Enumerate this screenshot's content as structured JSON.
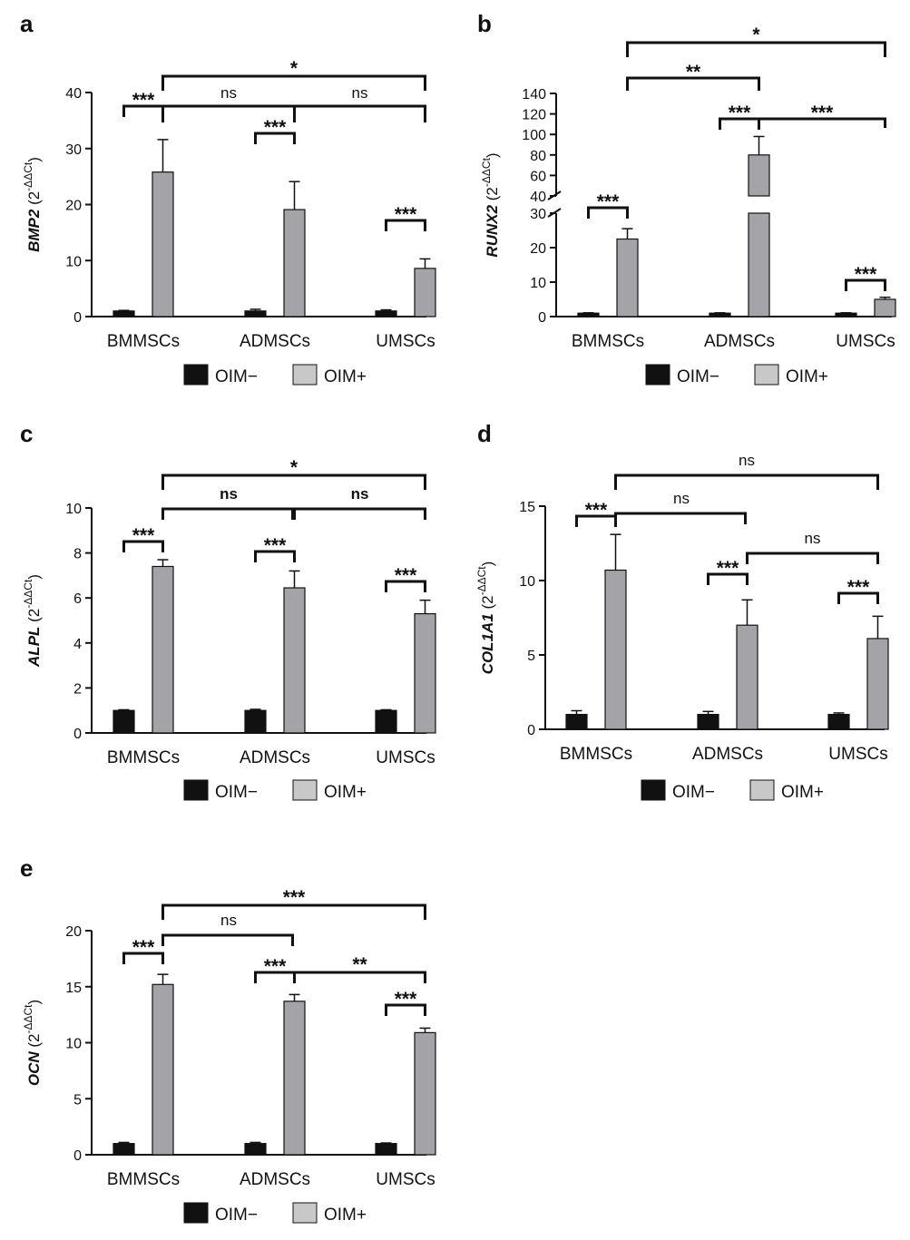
{
  "legend": {
    "neg_label": "OIM−",
    "pos_label": "OIM+"
  },
  "colors": {
    "neg": "#111111",
    "pos": "#a3a3a8",
    "legend_pos": "#c8c8c8"
  },
  "chart_data": [
    {
      "type": "bar",
      "panel": "a",
      "gene": "BMP2",
      "ylabel_suffix": "2",
      "ylabel_sup": "-ΔΔCt",
      "categories": [
        "BMMSCs",
        "ADMSCs",
        "UMSCs"
      ],
      "ylim": [
        0,
        40
      ],
      "yticks": [
        0,
        10,
        20,
        30,
        40
      ],
      "series": [
        {
          "name": "OIM−",
          "values": [
            1.0,
            1.0,
            1.0
          ],
          "errors": [
            0.1,
            0.3,
            0.2
          ]
        },
        {
          "name": "OIM+",
          "values": [
            25.8,
            19.1,
            8.6
          ],
          "errors": [
            5.8,
            5.0,
            1.7
          ]
        }
      ],
      "significance": [
        {
          "label": "***",
          "from": "BMMSCs OIM−",
          "to": "BMMSCs OIM+"
        },
        {
          "label": "***",
          "from": "ADMSCs OIM−",
          "to": "ADMSCs OIM+"
        },
        {
          "label": "***",
          "from": "UMSCs OIM−",
          "to": "UMSCs OIM+"
        },
        {
          "label": "ns",
          "from": "BMMSCs OIM+",
          "to": "ADMSCs OIM+"
        },
        {
          "label": "ns",
          "from": "ADMSCs OIM+",
          "to": "UMSCs OIM+"
        },
        {
          "label": "*",
          "from": "BMMSCs OIM+",
          "to": "UMSCs OIM+"
        }
      ]
    },
    {
      "type": "bar",
      "panel": "b",
      "gene": "RUNX2",
      "ylabel_suffix": "2",
      "ylabel_sup": "-ΔΔCt",
      "categories": [
        "BMMSCs",
        "ADMSCs",
        "UMSCs"
      ],
      "axis_break": {
        "lower": [
          0,
          30
        ],
        "upper": [
          40,
          140
        ]
      },
      "yticks_lower": [
        0,
        10,
        20,
        30
      ],
      "yticks_upper": [
        40,
        60,
        80,
        100,
        120,
        140
      ],
      "series": [
        {
          "name": "OIM−",
          "values": [
            1.0,
            1.0,
            1.0
          ],
          "errors": [
            0.1,
            0.1,
            0.1
          ]
        },
        {
          "name": "OIM+",
          "values": [
            22.5,
            80,
            5.0
          ],
          "errors": [
            3.0,
            18,
            0.6
          ]
        }
      ],
      "significance": [
        {
          "label": "***",
          "from": "BMMSCs OIM−",
          "to": "BMMSCs OIM+"
        },
        {
          "label": "***",
          "from": "ADMSCs OIM−",
          "to": "ADMSCs OIM+"
        },
        {
          "label": "***",
          "from": "UMSCs OIM−",
          "to": "UMSCs OIM+"
        },
        {
          "label": "***",
          "from": "ADMSCs OIM+",
          "to": "UMSCs OIM+"
        },
        {
          "label": "**",
          "from": "BMMSCs OIM+",
          "to": "ADMSCs OIM+"
        },
        {
          "label": "*",
          "from": "BMMSCs OIM+",
          "to": "UMSCs OIM+"
        }
      ]
    },
    {
      "type": "bar",
      "panel": "c",
      "gene": "ALPL",
      "ylabel_suffix": "2",
      "ylabel_sup": "-ΔΔCt",
      "categories": [
        "BMMSCs",
        "ADMSCs",
        "UMSCs"
      ],
      "ylim": [
        0,
        10
      ],
      "yticks": [
        0,
        2,
        4,
        6,
        8,
        10
      ],
      "series": [
        {
          "name": "OIM−",
          "values": [
            1.0,
            1.0,
            1.0
          ],
          "errors": [
            0.03,
            0.05,
            0.03
          ]
        },
        {
          "name": "OIM+",
          "values": [
            7.4,
            6.45,
            5.3
          ],
          "errors": [
            0.3,
            0.75,
            0.6
          ]
        }
      ],
      "significance": [
        {
          "label": "***",
          "from": "BMMSCs OIM−",
          "to": "BMMSCs OIM+"
        },
        {
          "label": "***",
          "from": "ADMSCs OIM−",
          "to": "ADMSCs OIM+"
        },
        {
          "label": "***",
          "from": "UMSCs OIM−",
          "to": "UMSCs OIM+"
        },
        {
          "label": "ns",
          "from": "BMMSCs OIM+",
          "to": "ADMSCs OIM+"
        },
        {
          "label": "ns",
          "from": "ADMSCs OIM+",
          "to": "UMSCs OIM+"
        },
        {
          "label": "*",
          "from": "BMMSCs OIM+",
          "to": "UMSCs OIM+"
        }
      ]
    },
    {
      "type": "bar",
      "panel": "d",
      "gene": "COL1A1",
      "ylabel_suffix": "2",
      "ylabel_sup": "-ΔΔCt",
      "categories": [
        "BMMSCs",
        "ADMSCs",
        "UMSCs"
      ],
      "ylim": [
        0,
        15
      ],
      "yticks": [
        0,
        5,
        10,
        15
      ],
      "series": [
        {
          "name": "OIM−",
          "values": [
            1.0,
            1.0,
            1.0
          ],
          "errors": [
            0.25,
            0.2,
            0.1
          ]
        },
        {
          "name": "OIM+",
          "values": [
            10.7,
            7.0,
            6.1
          ],
          "errors": [
            2.4,
            1.7,
            1.5
          ]
        }
      ],
      "significance": [
        {
          "label": "***",
          "from": "BMMSCs OIM−",
          "to": "BMMSCs OIM+"
        },
        {
          "label": "***",
          "from": "ADMSCs OIM−",
          "to": "ADMSCs OIM+"
        },
        {
          "label": "***",
          "from": "UMSCs OIM−",
          "to": "UMSCs OIM+"
        },
        {
          "label": "ns",
          "from": "BMMSCs OIM+",
          "to": "ADMSCs OIM+"
        },
        {
          "label": "ns",
          "from": "ADMSCs OIM+",
          "to": "UMSCs OIM+"
        },
        {
          "label": "ns",
          "from": "BMMSCs OIM+",
          "to": "UMSCs OIM+"
        }
      ]
    },
    {
      "type": "bar",
      "panel": "e",
      "gene": "OCN",
      "ylabel_suffix": "2",
      "ylabel_sup": "-ΔΔCt",
      "categories": [
        "BMMSCs",
        "ADMSCs",
        "UMSCs"
      ],
      "ylim": [
        0,
        20
      ],
      "yticks": [
        0,
        5,
        10,
        15,
        20
      ],
      "series": [
        {
          "name": "OIM−",
          "values": [
            1.0,
            1.0,
            1.0
          ],
          "errors": [
            0.1,
            0.1,
            0.05
          ]
        },
        {
          "name": "OIM+",
          "values": [
            15.2,
            13.7,
            10.9
          ],
          "errors": [
            0.9,
            0.6,
            0.4
          ]
        }
      ],
      "significance": [
        {
          "label": "***",
          "from": "BMMSCs OIM−",
          "to": "BMMSCs OIM+"
        },
        {
          "label": "***",
          "from": "ADMSCs OIM−",
          "to": "ADMSCs OIM+"
        },
        {
          "label": "***",
          "from": "UMSCs OIM−",
          "to": "UMSCs OIM+"
        },
        {
          "label": "ns",
          "from": "BMMSCs OIM+",
          "to": "ADMSCs OIM+"
        },
        {
          "label": "**",
          "from": "ADMSCs OIM+",
          "to": "UMSCs OIM+"
        },
        {
          "label": "***",
          "from": "BMMSCs OIM+",
          "to": "UMSCs OIM+"
        }
      ]
    }
  ]
}
